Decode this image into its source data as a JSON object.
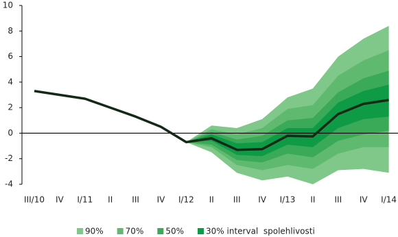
{
  "chart_data": {
    "type": "fan",
    "categories": [
      "III/10",
      "IV",
      "I/11",
      "II",
      "III",
      "IV",
      "I/12",
      "II",
      "III",
      "IV",
      "I/13",
      "II",
      "III",
      "IV",
      "I/14"
    ],
    "ylim": [
      -4,
      10
    ],
    "yticks": [
      -4,
      -2,
      0,
      2,
      4,
      6,
      8,
      10
    ],
    "line": {
      "color": "#142a17",
      "values": [
        3.3,
        3.0,
        2.7,
        2.0,
        1.3,
        0.5,
        -0.7,
        -0.4,
        -1.3,
        -1.25,
        -0.2,
        -0.25,
        1.5,
        2.3,
        2.6
      ]
    },
    "series": [
      {
        "name": "90%",
        "color": "#80c88a",
        "upper": [
          null,
          null,
          null,
          null,
          null,
          null,
          -0.7,
          0.6,
          0.4,
          1.1,
          2.8,
          3.5,
          6.0,
          7.4,
          8.4
        ],
        "lower": [
          null,
          null,
          null,
          null,
          null,
          null,
          -0.7,
          -1.5,
          -3.1,
          -3.7,
          -3.4,
          -4.0,
          -2.9,
          -2.8,
          -3.1
        ]
      },
      {
        "name": "70%",
        "color": "#5fba70",
        "upper": [
          null,
          null,
          null,
          null,
          null,
          null,
          -0.7,
          0.3,
          -0.1,
          0.4,
          1.9,
          2.2,
          4.5,
          5.7,
          6.5
        ],
        "lower": [
          null,
          null,
          null,
          null,
          null,
          null,
          -0.7,
          -1.1,
          -2.5,
          -2.9,
          -2.5,
          -2.8,
          -1.6,
          -1.1,
          -1.1
        ]
      },
      {
        "name": "50%",
        "color": "#3aaa58",
        "upper": [
          null,
          null,
          null,
          null,
          null,
          null,
          -0.7,
          0.1,
          -0.5,
          -0.2,
          1.0,
          1.2,
          3.2,
          4.3,
          4.9
        ],
        "lower": [
          null,
          null,
          null,
          null,
          null,
          null,
          -0.7,
          -0.9,
          -2.1,
          -2.3,
          -1.6,
          -1.9,
          -0.6,
          -0.1,
          0.2
        ]
      },
      {
        "name": "30% interval  spolehlivosti",
        "color": "#0f9a46",
        "upper": [
          null,
          null,
          null,
          null,
          null,
          null,
          -0.7,
          -0.1,
          -0.8,
          -0.7,
          0.4,
          0.4,
          2.4,
          3.3,
          3.8
        ],
        "lower": [
          null,
          null,
          null,
          null,
          null,
          null,
          -0.7,
          -0.6,
          -1.7,
          -1.8,
          -0.9,
          -1.1,
          0.4,
          1.1,
          1.3
        ]
      }
    ]
  }
}
